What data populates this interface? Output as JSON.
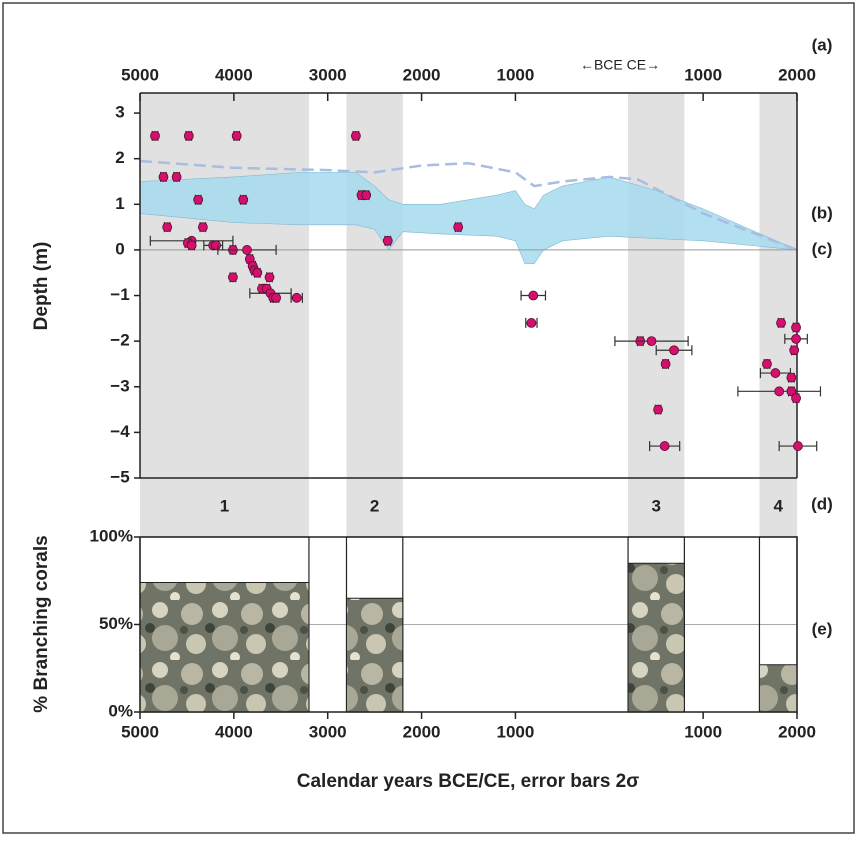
{
  "chart_data": [
    {
      "type": "scatter",
      "ylabel": "Depth (m)",
      "era_note": "←BCE  CE→",
      "panel_labels": [
        "(a)",
        "(b)",
        "(c)",
        "(d)"
      ],
      "xlim": [
        -5000,
        2000
      ],
      "xticks": [
        {
          "value": -5000,
          "label": "5000"
        },
        {
          "value": -4000,
          "label": "4000"
        },
        {
          "value": -3000,
          "label": "3000"
        },
        {
          "value": -2000,
          "label": "2000"
        },
        {
          "value": -1000,
          "label": "1000"
        },
        1000,
        2000
      ],
      "ylim": [
        -5,
        3.44
      ],
      "yticks": [
        3,
        2,
        1,
        0,
        {
          "value": -1,
          "label": "−1"
        },
        {
          "value": -2,
          "label": "−2"
        },
        {
          "value": -3,
          "label": "−3"
        },
        {
          "value": -4,
          "label": "−4"
        },
        {
          "value": -5,
          "label": "−5"
        }
      ],
      "bands": {
        "start": [
          -5000,
          -2800,
          200,
          1600
        ],
        "end": [
          -3200,
          -2200,
          800,
          2000
        ],
        "labels": [
          "1",
          "2",
          "3",
          "4"
        ],
        "color": "#e1e1e1"
      },
      "sea_level": {
        "color": "#a6dbee",
        "x": [
          -5000,
          -4000,
          -3300,
          -2700,
          -2500,
          -2350,
          -2200,
          -1800,
          -1200,
          -1000,
          -900,
          -800,
          -700,
          -500,
          0,
          500,
          1000,
          2000
        ],
        "upper": [
          1.5,
          1.6,
          1.7,
          1.7,
          1.4,
          1.1,
          1.0,
          1.0,
          1.2,
          1.3,
          1.0,
          0.9,
          1.2,
          1.4,
          1.6,
          1.3,
          0.9,
          0.0
        ],
        "lower": [
          0.8,
          0.6,
          0.55,
          0.55,
          0.45,
          0.0,
          0.4,
          0.35,
          0.3,
          0.2,
          -0.3,
          -0.3,
          0.0,
          0.2,
          0.3,
          0.25,
          0.2,
          0.0
        ]
      },
      "dashed_line": {
        "color": "#a9bde2",
        "x": [
          -5000,
          -4000,
          -3000,
          -2500,
          -2000,
          -1500,
          -1000,
          -800,
          -500,
          0,
          300,
          1000,
          2000
        ],
        "y": [
          1.95,
          1.8,
          1.75,
          1.7,
          1.85,
          1.9,
          1.7,
          1.4,
          1.5,
          1.6,
          1.55,
          0.8,
          0.0
        ]
      },
      "points": {
        "color": "#d3106e",
        "x": [
          -4840,
          -4480,
          -3970,
          -4750,
          -4610,
          -4380,
          -3900,
          -4710,
          -4330,
          -4450,
          -4490,
          -4450,
          -4220,
          -4190,
          -4010,
          -3860,
          -3830,
          -3800,
          -3780,
          -3750,
          -4010,
          -3620,
          -3700,
          -3650,
          -3610,
          -3580,
          -3550,
          -3330,
          -2700,
          -2640,
          -2590,
          -2360,
          -1610,
          -810,
          -830,
          330,
          450,
          690,
          600,
          520,
          590,
          1830,
          1990,
          1990,
          1970,
          1680,
          1770,
          1940,
          1810,
          1940,
          1990,
          2010
        ],
        "y": [
          2.5,
          2.5,
          2.5,
          1.6,
          1.6,
          1.1,
          1.1,
          0.5,
          0.5,
          0.2,
          0.15,
          0.1,
          0.1,
          0.1,
          0.0,
          0.0,
          -0.2,
          -0.35,
          -0.45,
          -0.5,
          -0.6,
          -0.6,
          -0.85,
          -0.85,
          -0.95,
          -1.05,
          -1.05,
          -1.05,
          2.5,
          1.2,
          1.2,
          0.2,
          0.5,
          -1.0,
          -1.6,
          -2.0,
          -2.0,
          -2.2,
          -2.5,
          -3.5,
          -4.3,
          -1.6,
          -1.7,
          -1.95,
          -2.2,
          -2.5,
          -2.7,
          -2.8,
          -3.1,
          -3.1,
          -3.25,
          -4.3
        ],
        "xerr": [
          30,
          30,
          30,
          30,
          30,
          30,
          30,
          30,
          30,
          440,
          30,
          30,
          100,
          30,
          30,
          310,
          30,
          30,
          30,
          30,
          30,
          30,
          30,
          30,
          220,
          30,
          30,
          60,
          30,
          30,
          30,
          30,
          30,
          130,
          60,
          30,
          390,
          190,
          30,
          30,
          160,
          30,
          30,
          120,
          30,
          30,
          160,
          30,
          440,
          30,
          30,
          200
        ]
      }
    },
    {
      "type": "bar",
      "panel_label": "(e)",
      "xlabel": "Calendar years BCE/CE, error bars 2σ",
      "ylabel": "% Branching corals",
      "xlim": [
        -5000,
        2000
      ],
      "xticks": [
        {
          "value": -5000,
          "label": "5000"
        },
        {
          "value": -4000,
          "label": "4000"
        },
        {
          "value": -3000,
          "label": "3000"
        },
        {
          "value": -2000,
          "label": "2000"
        },
        {
          "value": -1000,
          "label": "1000"
        },
        1000,
        2000
      ],
      "ylim": [
        0,
        100
      ],
      "yticks": [
        {
          "value": 0,
          "label": "0%"
        },
        {
          "value": 50,
          "label": "50%"
        },
        {
          "value": 100,
          "label": "100%"
        }
      ],
      "grid": true,
      "start": [
        -5000,
        -2800,
        200,
        1600
      ],
      "end": [
        -3200,
        -2200,
        800,
        2000
      ],
      "values": [
        74,
        65,
        85,
        27
      ]
    }
  ]
}
